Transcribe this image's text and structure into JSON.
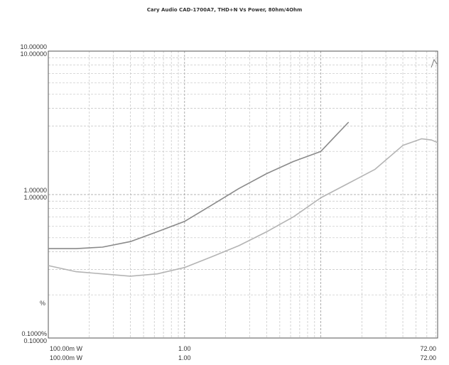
{
  "chart_data": {
    "type": "line",
    "title": "Cary Audio CAD-1700A7, THD+N Vs Power, 80hm/4Ohm",
    "xlabel": "",
    "ylabel": "%",
    "x_scale": "log",
    "y_scale": "log",
    "xlim": [
      0.1,
      72
    ],
    "ylim": [
      0.1,
      10
    ],
    "grid": true,
    "legend": "none",
    "x_ticks": [
      {
        "value": 0.1,
        "label_top": "100.00m W",
        "label_bottom": "100.00m W"
      },
      {
        "value": 1,
        "label_top": "1.00",
        "label_bottom": "1.00"
      },
      {
        "value": 72,
        "label_top": "72.00",
        "label_bottom": "72.00"
      }
    ],
    "y_ticks": [
      {
        "value": 10,
        "label_top": "10.00000",
        "label_bottom": "10.00000"
      },
      {
        "value": 1,
        "label_top": "1.00000",
        "label_bottom": "1.00000"
      },
      {
        "value": 0.1,
        "label_top": "0.1000%",
        "label_bottom": "0.10000"
      }
    ],
    "series": [
      {
        "color": "#8a8a8a",
        "x": [
          0.1,
          0.16,
          0.25,
          0.4,
          0.63,
          1.0,
          1.6,
          2.5,
          4.0,
          6.3,
          10.0,
          13.0,
          16.0
        ],
        "y": [
          0.42,
          0.42,
          0.43,
          0.47,
          0.55,
          0.65,
          0.85,
          1.1,
          1.4,
          1.7,
          2.0,
          2.6,
          3.2
        ]
      },
      {
        "color": "#b4b4b4",
        "x": [
          0.1,
          0.16,
          0.25,
          0.4,
          0.63,
          1.0,
          1.6,
          2.5,
          4.0,
          6.3,
          10.0,
          16.0,
          25.0,
          40.0,
          55.0,
          65.0,
          72.0
        ],
        "y": [
          0.32,
          0.29,
          0.28,
          0.27,
          0.28,
          0.31,
          0.37,
          0.44,
          0.55,
          0.7,
          0.95,
          1.2,
          1.5,
          2.2,
          2.45,
          2.4,
          2.3
        ]
      }
    ]
  }
}
